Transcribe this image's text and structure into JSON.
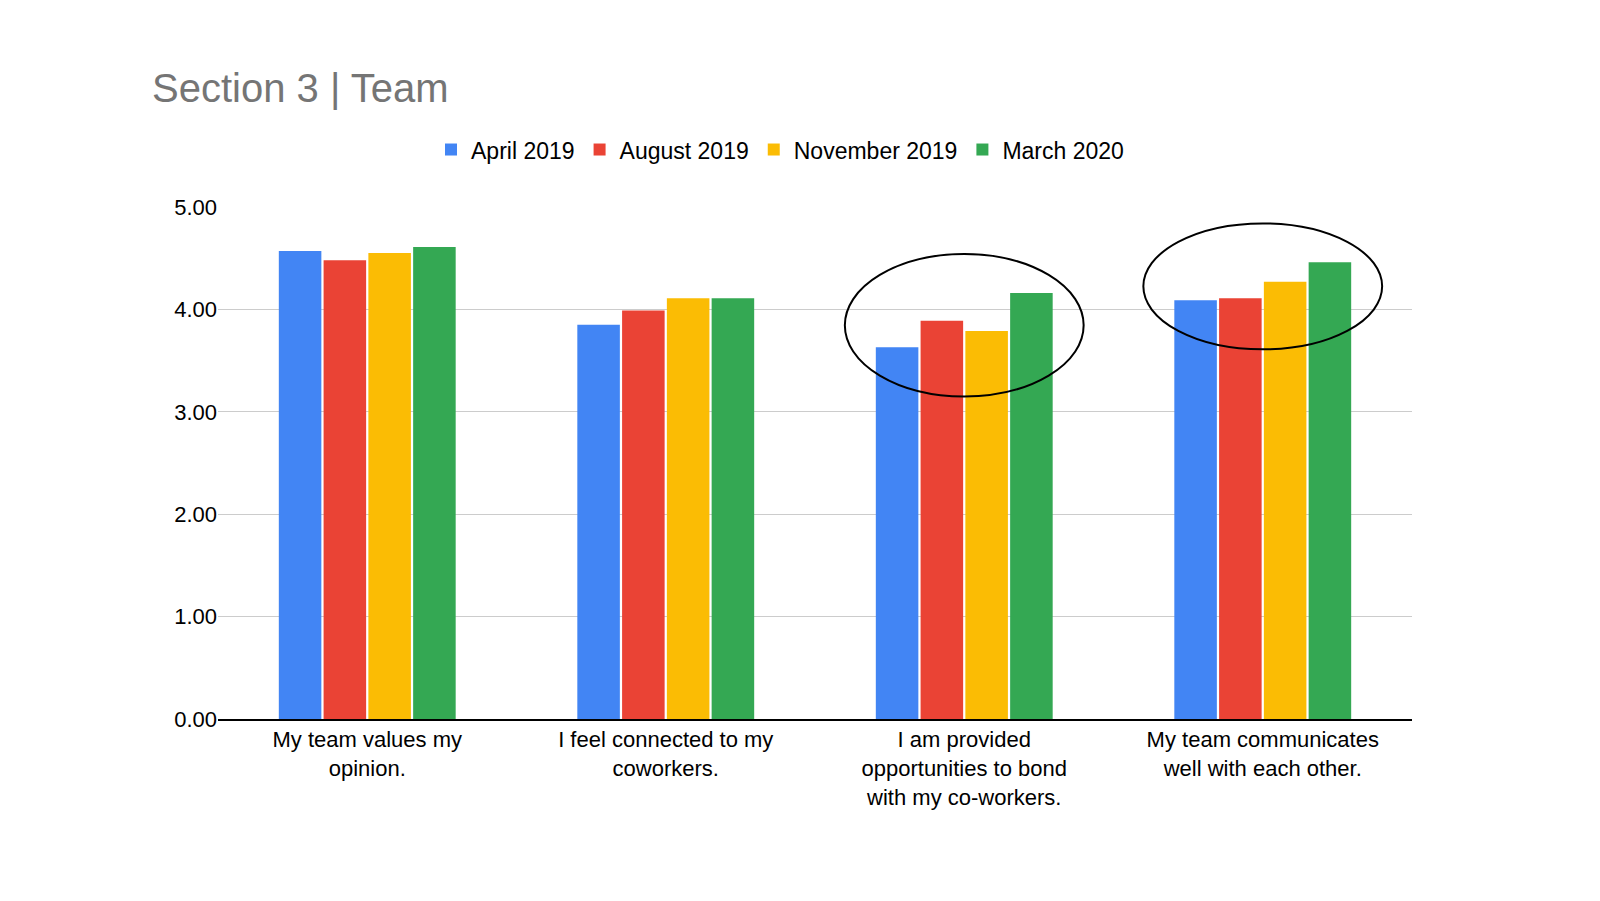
{
  "chart_data": {
    "type": "bar",
    "title": "Section 3 | Team",
    "categories": [
      "My team values my opinion.",
      "I feel connected to my coworkers.",
      "I am provided opportunities to bond with my co-workers.",
      "My team communicates well with each other."
    ],
    "series": [
      {
        "name": "April 2019",
        "color": "#4285f4",
        "values": [
          4.57,
          3.85,
          3.63,
          4.09
        ]
      },
      {
        "name": "August 2019",
        "color": "#ea4335",
        "values": [
          4.48,
          3.99,
          3.89,
          4.11
        ]
      },
      {
        "name": "November 2019",
        "color": "#fbbc04",
        "values": [
          4.55,
          4.11,
          3.79,
          4.27
        ]
      },
      {
        "name": "March 2020",
        "color": "#34a853",
        "values": [
          4.61,
          4.11,
          4.16,
          4.46
        ]
      }
    ],
    "ylim": [
      0,
      5
    ],
    "yticks": [
      {
        "value": 0,
        "label": "0.00"
      },
      {
        "value": 1,
        "label": "1.00"
      },
      {
        "value": 2,
        "label": "2.00"
      },
      {
        "value": 3,
        "label": "3.00"
      },
      {
        "value": 4,
        "label": "4.00"
      },
      {
        "value": 5,
        "label": "5.00"
      }
    ],
    "grid": true,
    "legend": "top"
  }
}
